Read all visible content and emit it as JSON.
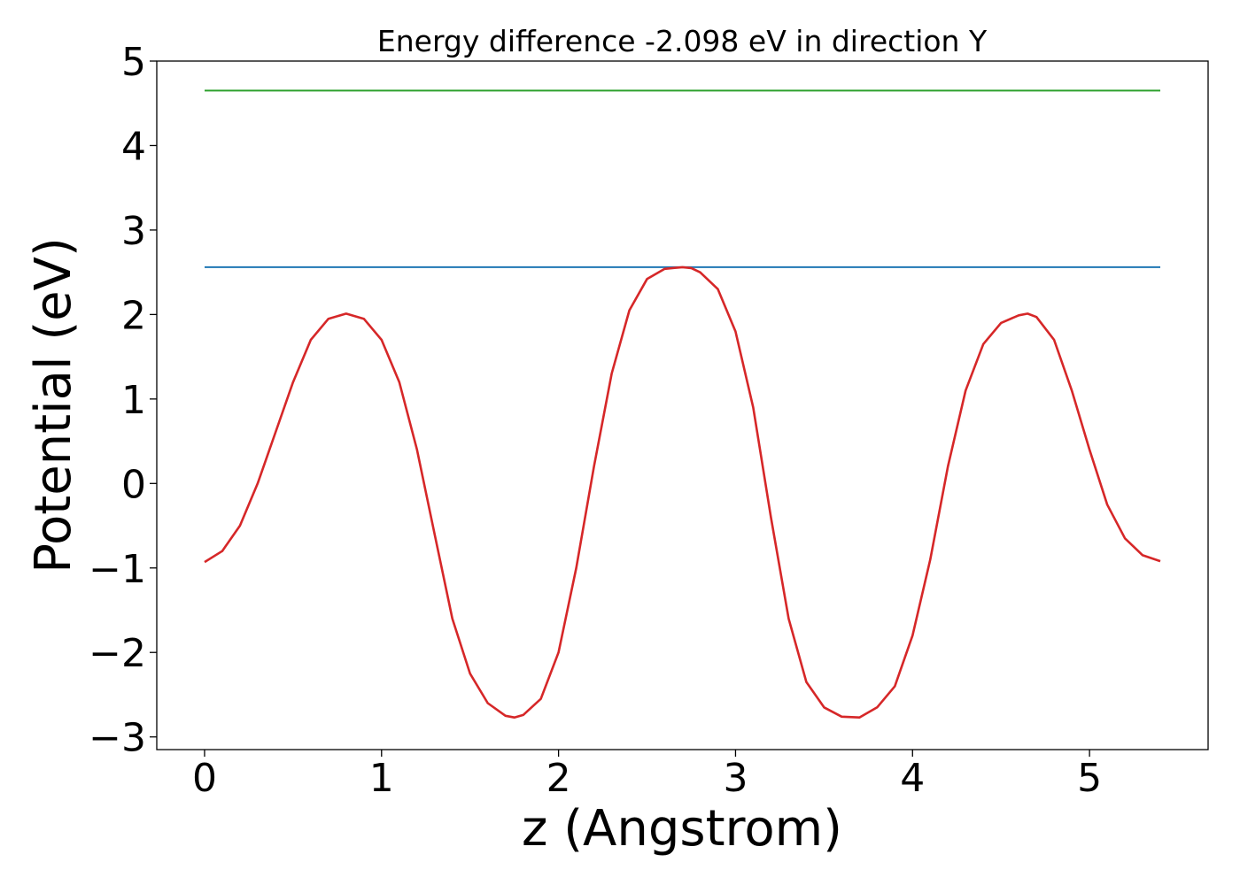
{
  "chart_data": {
    "type": "line",
    "title": "Energy difference -2.098 eV in direction Y",
    "xlabel": "z (Angstrom)",
    "ylabel": "Potential (eV)",
    "xlim": [
      -0.27,
      5.67
    ],
    "ylim": [
      -3.15,
      5.0
    ],
    "xticks": [
      0,
      1,
      2,
      3,
      4,
      5
    ],
    "xtick_labels": [
      "0",
      "1",
      "2",
      "3",
      "4",
      "5"
    ],
    "yticks": [
      -3,
      -2,
      -1,
      0,
      1,
      2,
      3,
      4,
      5
    ],
    "ytick_labels": [
      "−3",
      "−2",
      "−1",
      "0",
      "1",
      "2",
      "3",
      "4",
      "5"
    ],
    "grid": false,
    "series": [
      {
        "color": "#2ca02c",
        "style": "horizontal",
        "x": [
          0.0,
          5.4
        ],
        "y": [
          4.65,
          4.65
        ]
      },
      {
        "color": "#1f77b4",
        "style": "horizontal",
        "x": [
          0.0,
          5.4
        ],
        "y": [
          2.56,
          2.56
        ]
      },
      {
        "color": "#d62728",
        "style": "curve",
        "x": [
          0.0,
          0.1,
          0.2,
          0.3,
          0.4,
          0.5,
          0.6,
          0.7,
          0.8,
          0.9,
          1.0,
          1.1,
          1.2,
          1.3,
          1.4,
          1.5,
          1.6,
          1.7,
          1.75,
          1.8,
          1.9,
          2.0,
          2.1,
          2.2,
          2.3,
          2.4,
          2.5,
          2.6,
          2.7,
          2.75,
          2.8,
          2.9,
          3.0,
          3.1,
          3.2,
          3.3,
          3.4,
          3.5,
          3.6,
          3.7,
          3.8,
          3.9,
          4.0,
          4.1,
          4.2,
          4.3,
          4.4,
          4.5,
          4.6,
          4.65,
          4.7,
          4.8,
          4.9,
          5.0,
          5.1,
          5.2,
          5.3,
          5.4
        ],
        "y": [
          -0.93,
          -0.8,
          -0.5,
          0.0,
          0.6,
          1.2,
          1.7,
          1.95,
          2.01,
          1.95,
          1.7,
          1.2,
          0.4,
          -0.6,
          -1.6,
          -2.25,
          -2.6,
          -2.75,
          -2.77,
          -2.74,
          -2.55,
          -2.0,
          -1.0,
          0.2,
          1.3,
          2.05,
          2.42,
          2.54,
          2.56,
          2.55,
          2.5,
          2.3,
          1.8,
          0.9,
          -0.4,
          -1.6,
          -2.35,
          -2.65,
          -2.76,
          -2.77,
          -2.65,
          -2.4,
          -1.8,
          -0.9,
          0.2,
          1.1,
          1.65,
          1.9,
          1.99,
          2.01,
          1.97,
          1.7,
          1.1,
          0.4,
          -0.25,
          -0.65,
          -0.85,
          -0.92
        ]
      }
    ]
  }
}
